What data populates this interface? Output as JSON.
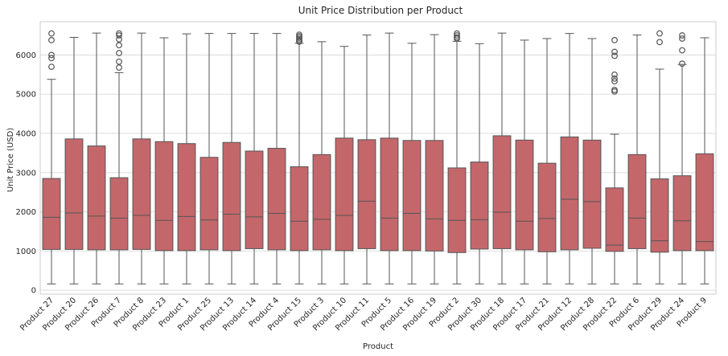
{
  "chart_data": {
    "type": "box",
    "title": "Unit Price Distribution per Product",
    "xlabel": "Product",
    "ylabel": "Unit Price (USD)",
    "ylim": [
      -100,
      6850
    ],
    "yticks": [
      0,
      1000,
      2000,
      3000,
      4000,
      5000,
      6000
    ],
    "grid": true,
    "colors": {
      "box": "#c4676b",
      "line": "#555555",
      "grid": "#dddddd",
      "text": "#262626",
      "frame": "#cccccc"
    },
    "categories": [
      "Product 27",
      "Product 20",
      "Product 26",
      "Product 7",
      "Product 8",
      "Product 23",
      "Product 1",
      "Product 25",
      "Product 13",
      "Product 14",
      "Product 4",
      "Product 15",
      "Product 3",
      "Product 10",
      "Product 11",
      "Product 5",
      "Product 16",
      "Product 19",
      "Product 2",
      "Product 30",
      "Product 18",
      "Product 17",
      "Product 21",
      "Product 12",
      "Product 28",
      "Product 22",
      "Product 6",
      "Product 29",
      "Product 24",
      "Product 9"
    ],
    "boxes": [
      {
        "whisker_low": 160,
        "q1": 1040,
        "median": 1860,
        "q3": 2850,
        "whisker_high": 5380,
        "outliers": [
          6550,
          6380,
          6000,
          5920,
          5700
        ]
      },
      {
        "whisker_low": 160,
        "q1": 1040,
        "median": 1970,
        "q3": 3860,
        "whisker_high": 6450,
        "outliers": []
      },
      {
        "whisker_low": 160,
        "q1": 1030,
        "median": 1890,
        "q3": 3680,
        "whisker_high": 6560,
        "outliers": []
      },
      {
        "whisker_low": 160,
        "q1": 1030,
        "median": 1840,
        "q3": 2870,
        "whisker_high": 5550,
        "outliers": [
          6550,
          6500,
          6400,
          6250,
          6050,
          5830,
          5680
        ]
      },
      {
        "whisker_low": 160,
        "q1": 1040,
        "median": 1910,
        "q3": 3860,
        "whisker_high": 6560,
        "outliers": []
      },
      {
        "whisker_low": 160,
        "q1": 1010,
        "median": 1780,
        "q3": 3790,
        "whisker_high": 6440,
        "outliers": []
      },
      {
        "whisker_low": 160,
        "q1": 1010,
        "median": 1880,
        "q3": 3740,
        "whisker_high": 6540,
        "outliers": []
      },
      {
        "whisker_low": 160,
        "q1": 1030,
        "median": 1790,
        "q3": 3390,
        "whisker_high": 6550,
        "outliers": []
      },
      {
        "whisker_low": 160,
        "q1": 1010,
        "median": 1940,
        "q3": 3770,
        "whisker_high": 6550,
        "outliers": []
      },
      {
        "whisker_low": 160,
        "q1": 1060,
        "median": 1870,
        "q3": 3550,
        "whisker_high": 6550,
        "outliers": []
      },
      {
        "whisker_low": 160,
        "q1": 1030,
        "median": 1960,
        "q3": 3620,
        "whisker_high": 6550,
        "outliers": []
      },
      {
        "whisker_low": 160,
        "q1": 1010,
        "median": 1760,
        "q3": 3150,
        "whisker_high": 6300,
        "outliers": [
          6520,
          6480,
          6440,
          6400,
          6360,
          6340
        ]
      },
      {
        "whisker_low": 160,
        "q1": 1030,
        "median": 1810,
        "q3": 3460,
        "whisker_high": 6340,
        "outliers": []
      },
      {
        "whisker_low": 160,
        "q1": 1010,
        "median": 1910,
        "q3": 3880,
        "whisker_high": 6220,
        "outliers": []
      },
      {
        "whisker_low": 160,
        "q1": 1060,
        "median": 2270,
        "q3": 3840,
        "whisker_high": 6510,
        "outliers": []
      },
      {
        "whisker_low": 160,
        "q1": 1010,
        "median": 1840,
        "q3": 3880,
        "whisker_high": 6560,
        "outliers": []
      },
      {
        "whisker_low": 160,
        "q1": 1010,
        "median": 1960,
        "q3": 3820,
        "whisker_high": 6300,
        "outliers": []
      },
      {
        "whisker_low": 160,
        "q1": 1000,
        "median": 1820,
        "q3": 3820,
        "whisker_high": 6520,
        "outliers": []
      },
      {
        "whisker_low": 160,
        "q1": 960,
        "median": 1780,
        "q3": 3120,
        "whisker_high": 6350,
        "outliers": [
          6550,
          6500,
          6450,
          6420
        ]
      },
      {
        "whisker_low": 160,
        "q1": 1050,
        "median": 1800,
        "q3": 3270,
        "whisker_high": 6290,
        "outliers": []
      },
      {
        "whisker_low": 160,
        "q1": 1060,
        "median": 1990,
        "q3": 3940,
        "whisker_high": 6560,
        "outliers": []
      },
      {
        "whisker_low": 160,
        "q1": 1030,
        "median": 1760,
        "q3": 3830,
        "whisker_high": 6380,
        "outliers": []
      },
      {
        "whisker_low": 160,
        "q1": 980,
        "median": 1830,
        "q3": 3240,
        "whisker_high": 6420,
        "outliers": []
      },
      {
        "whisker_low": 160,
        "q1": 1030,
        "median": 2320,
        "q3": 3910,
        "whisker_high": 6550,
        "outliers": []
      },
      {
        "whisker_low": 160,
        "q1": 1070,
        "median": 2260,
        "q3": 3830,
        "whisker_high": 6420,
        "outliers": []
      },
      {
        "whisker_low": 160,
        "q1": 990,
        "median": 1150,
        "q3": 2610,
        "whisker_high": 3980,
        "outliers": [
          6380,
          6080,
          5980,
          5500,
          5400,
          5330,
          5110,
          5070
        ]
      },
      {
        "whisker_low": 160,
        "q1": 1060,
        "median": 1840,
        "q3": 3460,
        "whisker_high": 6510,
        "outliers": []
      },
      {
        "whisker_low": 160,
        "q1": 970,
        "median": 1260,
        "q3": 2840,
        "whisker_high": 5640,
        "outliers": [
          6550,
          6330
        ]
      },
      {
        "whisker_low": 160,
        "q1": 1010,
        "median": 1770,
        "q3": 2920,
        "whisker_high": 5760,
        "outliers": [
          6500,
          6420,
          6120,
          5780
        ]
      },
      {
        "whisker_low": 160,
        "q1": 1010,
        "median": 1240,
        "q3": 3480,
        "whisker_high": 6440,
        "outliers": []
      }
    ]
  }
}
